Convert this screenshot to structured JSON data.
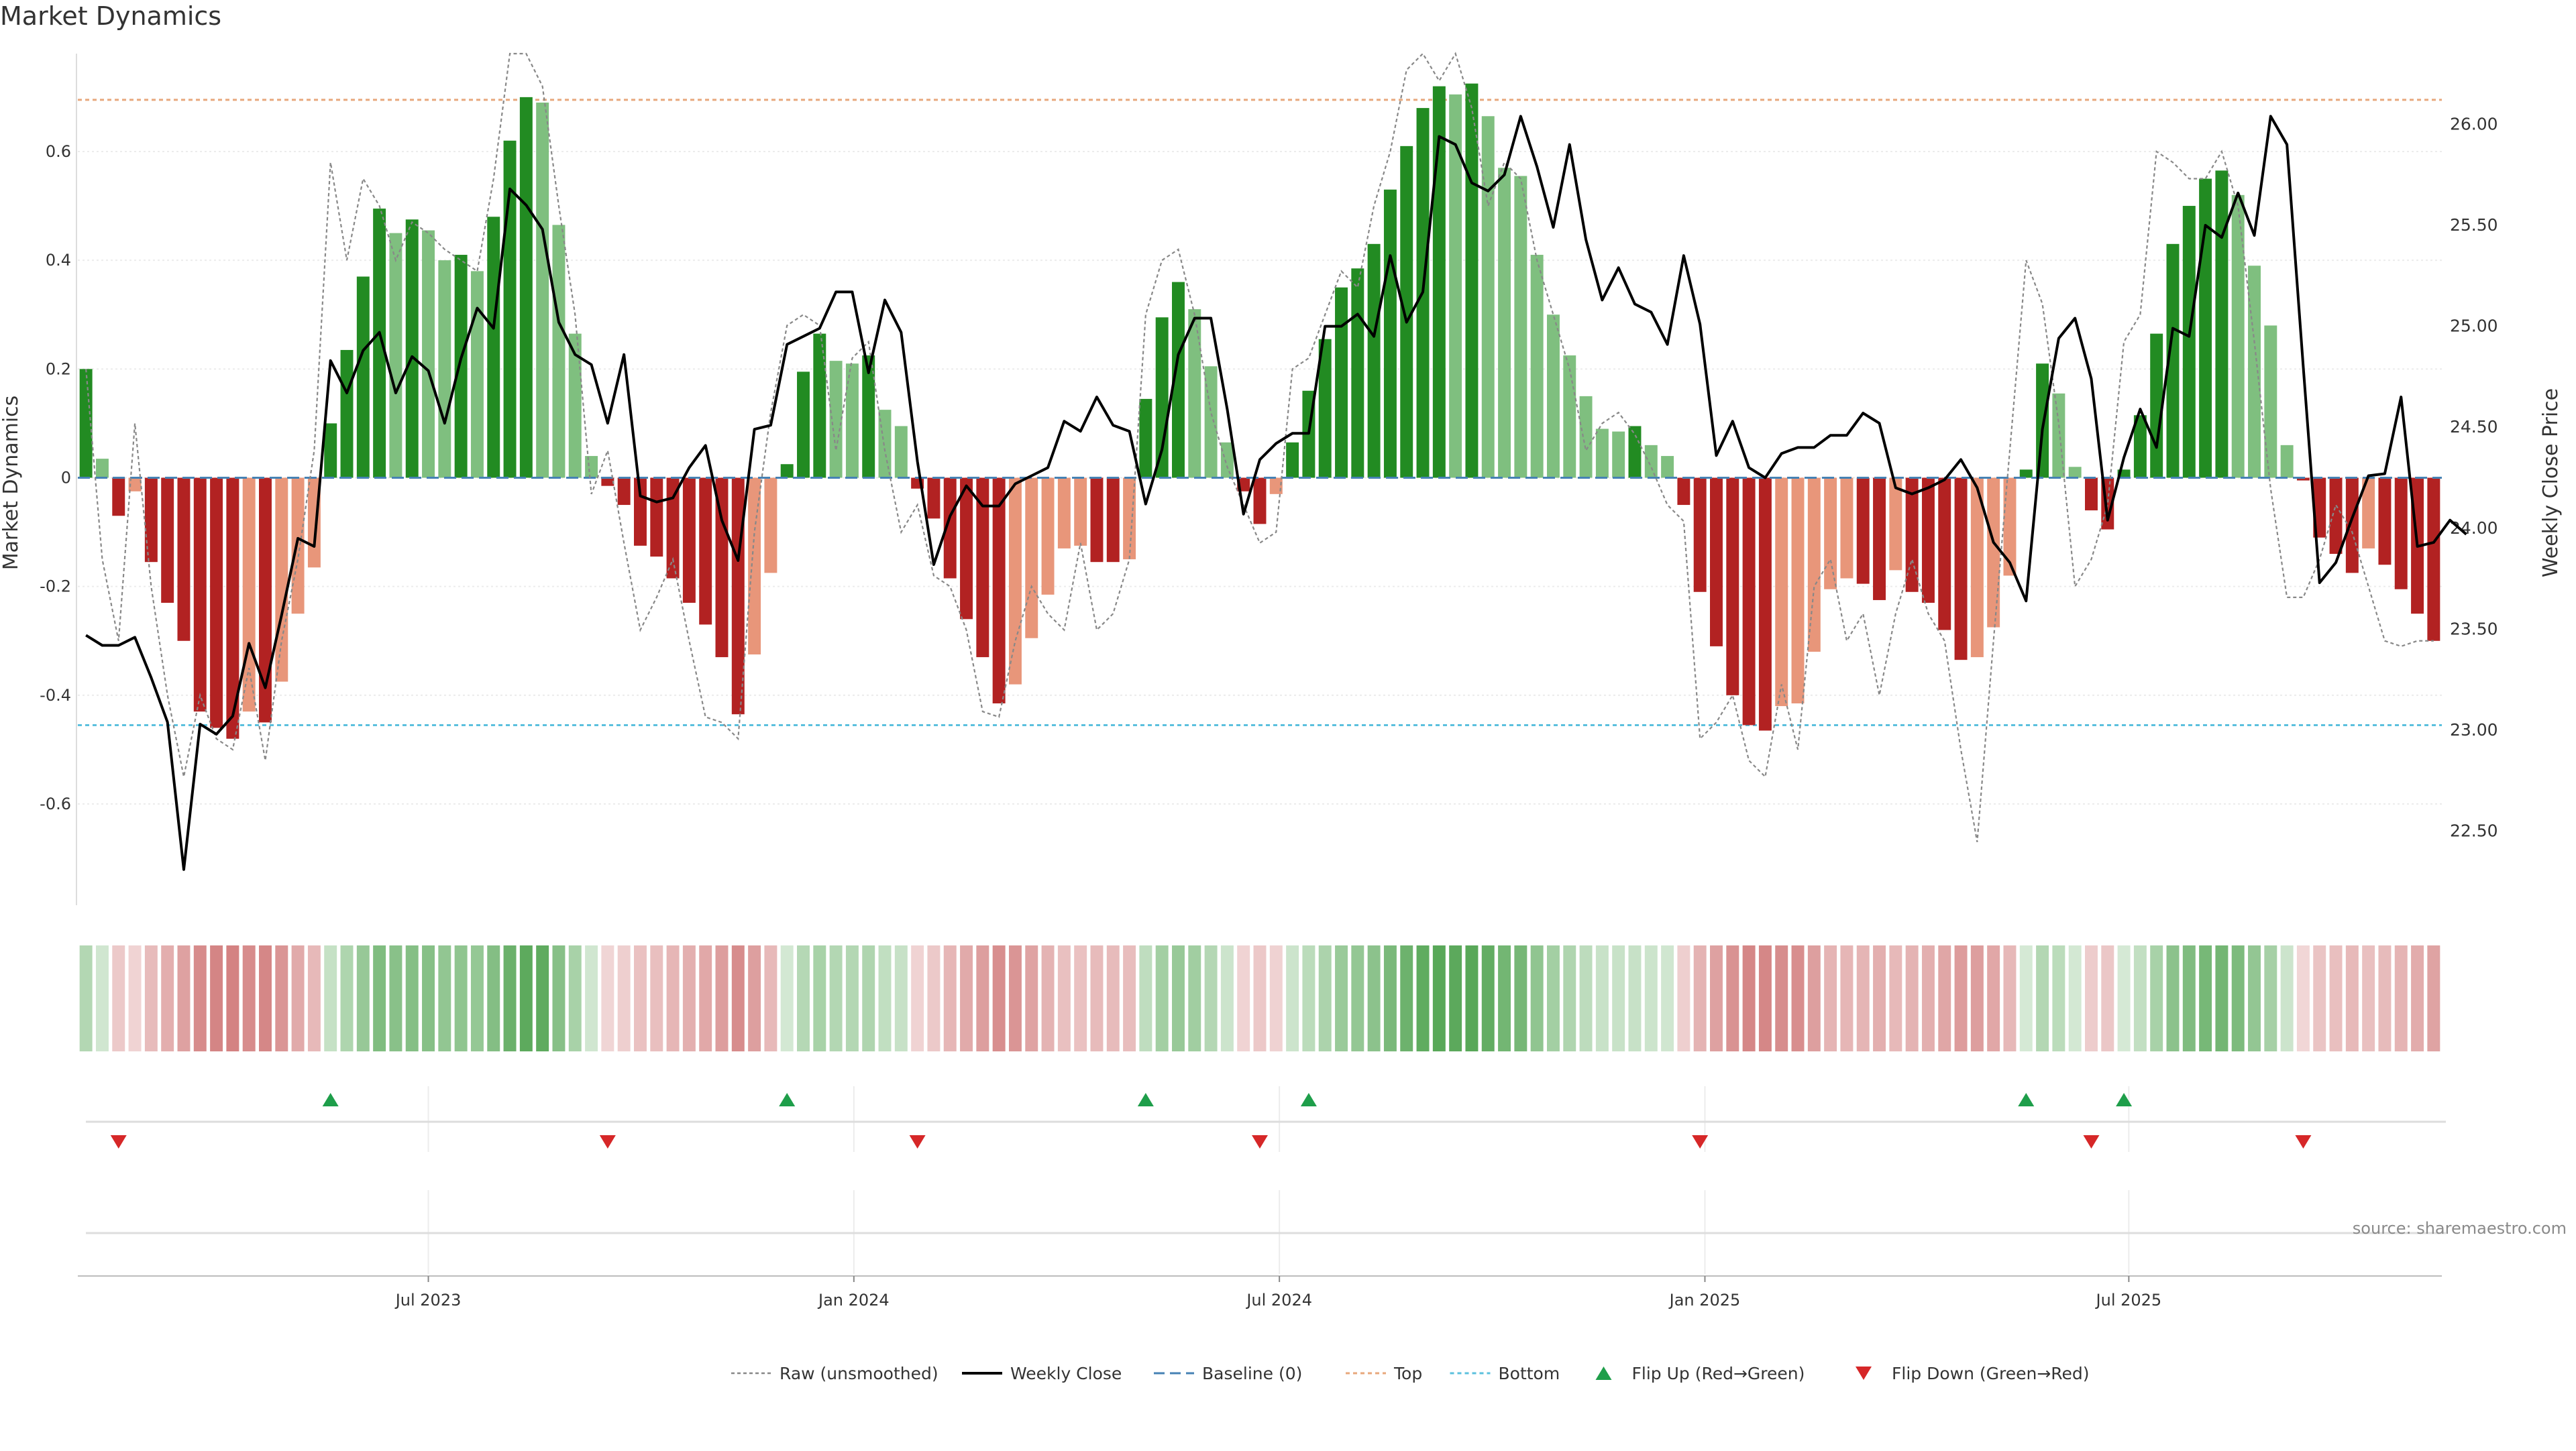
{
  "title": "Market Dynamics",
  "source": "source: sharemaestro.com",
  "colors": {
    "green_strong": "#228b22",
    "green_light": "#7fbf7f",
    "red_strong": "#b22222",
    "red_light": "#e8967a",
    "close_line": "#000000",
    "raw_line": "#888888",
    "baseline": "#4682b4",
    "top": "#e8a87c",
    "bottom": "#5bc0de",
    "flip_up": "#1e9e4a",
    "flip_down": "#d62728"
  },
  "chart_data": {
    "type": "bar",
    "title": "Market Dynamics",
    "ylabel_left": "Market Dynamics",
    "ylabel_right": "Weekly Close Price",
    "ylim_left": [
      -0.78,
      0.78
    ],
    "ylim_right": [
      22.15,
      26.35
    ],
    "yticks_left": [
      "-0.6",
      "-0.4",
      "-0.2",
      "0",
      "0.2",
      "0.4",
      "0.6"
    ],
    "yticks_right": [
      "22.50",
      "23.00",
      "23.50",
      "24.00",
      "24.50",
      "25.00",
      "25.50",
      "26.00"
    ],
    "xticks": [
      "Jul 2023",
      "Jan 2024",
      "Jul 2024",
      "Jan 2025",
      "Jul 2025"
    ],
    "grid": true,
    "legend_position": "bottom",
    "top_level": 0.695,
    "bottom_level": -0.455,
    "baseline": 0,
    "dynamics": [
      0.2,
      0.035,
      -0.07,
      -0.025,
      -0.155,
      -0.23,
      -0.3,
      -0.43,
      -0.46,
      -0.48,
      -0.43,
      -0.45,
      -0.375,
      -0.25,
      -0.165,
      0.1,
      0.235,
      0.37,
      0.495,
      0.45,
      0.475,
      0.455,
      0.4,
      0.41,
      0.38,
      0.48,
      0.62,
      0.7,
      0.69,
      0.465,
      0.265,
      0.04,
      -0.015,
      -0.05,
      -0.125,
      -0.145,
      -0.185,
      -0.23,
      -0.27,
      -0.33,
      -0.435,
      -0.325,
      -0.175,
      0.025,
      0.195,
      0.265,
      0.215,
      0.21,
      0.225,
      0.125,
      0.095,
      -0.02,
      -0.075,
      -0.185,
      -0.26,
      -0.33,
      -0.415,
      -0.38,
      -0.295,
      -0.215,
      -0.13,
      -0.125,
      -0.155,
      -0.155,
      -0.15,
      0.145,
      0.295,
      0.36,
      0.31,
      0.205,
      0.065,
      -0.025,
      -0.085,
      -0.03,
      0.065,
      0.16,
      0.255,
      0.35,
      0.385,
      0.43,
      0.53,
      0.61,
      0.68,
      0.72,
      0.705,
      0.725,
      0.665,
      0.57,
      0.555,
      0.41,
      0.3,
      0.225,
      0.15,
      0.09,
      0.085,
      0.095,
      0.06,
      0.04,
      -0.05,
      -0.21,
      -0.31,
      -0.4,
      -0.455,
      -0.465,
      -0.42,
      -0.415,
      -0.32,
      -0.205,
      -0.185,
      -0.195,
      -0.225,
      -0.17,
      -0.21,
      -0.23,
      -0.28,
      -0.335,
      -0.33,
      -0.275,
      -0.18,
      0.015,
      0.21,
      0.155,
      0.02,
      -0.06,
      -0.095,
      0.015,
      0.115,
      0.265,
      0.43,
      0.5,
      0.55,
      0.565,
      0.52,
      0.39,
      0.28,
      0.06,
      -0.005,
      -0.11,
      -0.14,
      -0.175,
      -0.13,
      -0.16,
      -0.205,
      -0.25,
      -0.3
    ],
    "weekly_close": [
      23.47,
      23.42,
      23.42,
      23.46,
      23.26,
      23.04,
      22.31,
      23.03,
      22.98,
      23.07,
      23.43,
      23.21,
      23.57,
      23.95,
      23.91,
      24.83,
      24.67,
      24.88,
      24.97,
      24.67,
      24.85,
      24.78,
      24.52,
      24.84,
      25.09,
      24.99,
      25.68,
      25.6,
      25.48,
      25.02,
      24.86,
      24.81,
      24.52,
      24.86,
      24.16,
      24.13,
      24.15,
      24.3,
      24.41,
      24.04,
      23.84,
      24.49,
      24.51,
      24.91,
      24.95,
      24.99,
      25.17,
      25.17,
      24.77,
      25.13,
      24.97,
      24.33,
      23.82,
      24.06,
      24.21,
      24.11,
      24.11,
      24.22,
      24.26,
      24.3,
      24.53,
      24.48,
      24.65,
      24.51,
      24.48,
      24.12,
      24.39,
      24.86,
      25.04,
      25.04,
      24.59,
      24.07,
      24.34,
      24.42,
      24.47,
      24.47,
      25,
      25,
      25.06,
      24.95,
      25.35,
      25.02,
      25.17,
      25.94,
      25.9,
      25.71,
      25.67,
      25.75,
      26.04,
      25.79,
      25.49,
      25.9,
      25.43,
      25.13,
      25.29,
      25.11,
      25.07,
      24.91,
      25.35,
      25.01,
      24.36,
      24.53,
      24.3,
      24.25,
      24.37,
      24.4,
      24.4,
      24.46,
      24.46,
      24.57,
      24.52,
      24.2,
      24.17,
      24.2,
      24.24,
      24.34,
      24.2,
      23.93,
      23.83,
      23.64,
      24.49,
      24.94,
      25.04,
      24.74,
      24.04,
      24.35,
      24.59,
      24.4,
      24.99,
      24.95,
      25.5,
      25.44,
      25.66,
      25.45,
      26.04,
      25.9,
      24.8,
      23.73,
      23.83,
      24.05,
      24.26,
      24.27,
      24.65,
      23.91,
      23.93,
      24.04,
      23.97
    ],
    "raw_dynamics": [
      0.2,
      -0.15,
      -0.3,
      0.1,
      -0.2,
      -0.4,
      -0.55,
      -0.4,
      -0.48,
      -0.5,
      -0.35,
      -0.52,
      -0.3,
      -0.15,
      0.05,
      0.58,
      0.4,
      0.55,
      0.5,
      0.4,
      0.47,
      0.45,
      0.42,
      0.4,
      0.38,
      0.55,
      0.78,
      0.78,
      0.72,
      0.5,
      0.3,
      -0.03,
      0.05,
      -0.12,
      -0.28,
      -0.22,
      -0.15,
      -0.3,
      -0.44,
      -0.45,
      -0.48,
      -0.1,
      0.12,
      0.28,
      0.3,
      0.28,
      0.05,
      0.22,
      0.25,
      0.05,
      -0.1,
      -0.05,
      -0.18,
      -0.2,
      -0.28,
      -0.43,
      -0.44,
      -0.3,
      -0.2,
      -0.25,
      -0.28,
      -0.12,
      -0.28,
      -0.25,
      -0.15,
      0.3,
      0.4,
      0.42,
      0.3,
      0.12,
      0.02,
      -0.05,
      -0.12,
      -0.1,
      0.2,
      0.22,
      0.3,
      0.38,
      0.35,
      0.5,
      0.6,
      0.75,
      0.78,
      0.73,
      0.78,
      0.68,
      0.5,
      0.58,
      0.55,
      0.4,
      0.3,
      0.2,
      0.05,
      0.1,
      0.12,
      0.08,
      0.02,
      -0.05,
      -0.08,
      -0.48,
      -0.45,
      -0.4,
      -0.52,
      -0.55,
      -0.38,
      -0.5,
      -0.2,
      -0.15,
      -0.3,
      -0.25,
      -0.4,
      -0.25,
      -0.15,
      -0.25,
      -0.3,
      -0.5,
      -0.67,
      -0.3,
      0.05,
      0.4,
      0.32,
      0.1,
      -0.2,
      -0.15,
      -0.05,
      0.25,
      0.3,
      0.6,
      0.58,
      0.55,
      0.55,
      0.6,
      0.5,
      0.25,
      -0.02,
      -0.22,
      -0.22,
      -0.15,
      -0.05,
      -0.1,
      -0.2,
      -0.3,
      -0.31,
      -0.3,
      -0.3
    ],
    "flip_up_weeks": [
      15,
      43,
      65,
      75,
      119,
      125
    ],
    "flip_down_weeks": [
      2,
      32,
      51,
      72,
      99,
      123,
      136
    ],
    "strip_values": [
      0.27,
      0.05,
      -0.1,
      -0.03,
      -0.2,
      -0.3,
      -0.4,
      -0.55,
      -0.6,
      -0.62,
      -0.55,
      -0.58,
      -0.48,
      -0.33,
      -0.22,
      0.13,
      0.3,
      0.47,
      0.63,
      0.57,
      0.6,
      0.58,
      0.51,
      0.52,
      0.48,
      0.61,
      0.79,
      0.89,
      0.88,
      0.59,
      0.34,
      0.05,
      -0.02,
      -0.06,
      -0.16,
      -0.18,
      -0.24,
      -0.29,
      -0.34,
      -0.42,
      -0.55,
      -0.41,
      -0.22,
      0.03,
      0.25,
      0.34,
      0.27,
      0.27,
      0.29,
      0.16,
      0.12,
      -0.03,
      -0.1,
      -0.24,
      -0.33,
      -0.42,
      -0.53,
      -0.48,
      -0.38,
      -0.27,
      -0.17,
      -0.16,
      -0.2,
      -0.2,
      -0.19,
      0.18,
      0.38,
      0.46,
      0.39,
      0.26,
      0.08,
      -0.03,
      -0.11,
      -0.04,
      0.08,
      0.2,
      0.32,
      0.45,
      0.49,
      0.55,
      0.68,
      0.78,
      0.87,
      0.92,
      0.9,
      0.92,
      0.85,
      0.73,
      0.71,
      0.52,
      0.38,
      0.29,
      0.19,
      0.11,
      0.11,
      0.12,
      0.08,
      0.05,
      -0.06,
      -0.27,
      -0.39,
      -0.51,
      -0.58,
      -0.59,
      -0.54,
      -0.53,
      -0.41,
      -0.26,
      -0.24,
      -0.25,
      -0.29,
      -0.22,
      -0.27,
      -0.29,
      -0.36,
      -0.43,
      -0.42,
      -0.35,
      -0.23,
      0.02,
      0.27,
      0.2,
      0.03,
      -0.08,
      -0.12,
      0.02,
      0.15,
      0.34,
      0.55,
      0.64,
      0.7,
      0.72,
      0.66,
      0.5,
      0.36,
      0.08,
      -0.01,
      -0.14,
      -0.18,
      -0.22,
      -0.17,
      -0.2,
      -0.26,
      -0.32,
      -0.38
    ]
  },
  "legend": {
    "raw": "Raw (unsmoothed)",
    "close": "Weekly Close",
    "baseline": "Baseline (0)",
    "top": "Top",
    "bottom": "Bottom",
    "flip_up": "Flip Up (Red→Green)",
    "flip_down": "Flip Down (Green→Red)"
  }
}
